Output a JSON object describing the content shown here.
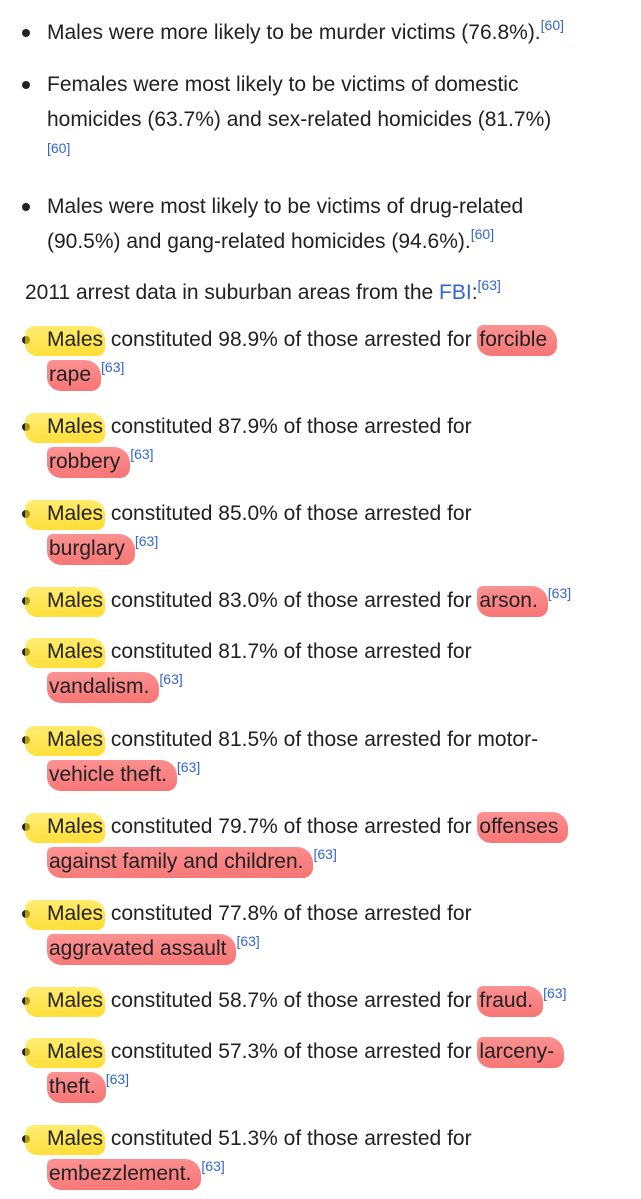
{
  "victims": [
    {
      "lines": [
        [
          "Males were more likely to be murder victims (76.8%).",
          "[60]"
        ]
      ]
    },
    {
      "lines": [
        [
          "Females were most likely to be victims of domestic",
          ""
        ],
        [
          "homicides (63.7%) and sex-related homicides (81.7%)",
          ""
        ],
        [
          "",
          "[60]"
        ]
      ]
    },
    {
      "lines": [
        [
          "Males were most likely to be victims of drug-related",
          ""
        ],
        [
          "(90.5%) and gang-related homicides (94.6%).",
          "[60]"
        ]
      ]
    }
  ],
  "intro": {
    "text": "2011 arrest data in suburban areas from the ",
    "link": "FBI",
    "colon": ":",
    "ref": "[63]"
  },
  "arrests": [
    {
      "males": "Males",
      "mid": " constituted 98.9% of those arrested for ",
      "crime1": "forcible",
      "crime2": "rape",
      "ref": "[63]"
    },
    {
      "males": "Males",
      "mid": " constituted 87.9% of those arrested for",
      "crime1": "",
      "crime2": "robbery",
      "ref": "[63]"
    },
    {
      "males": "Males",
      "mid": " constituted 85.0% of those arrested for",
      "crime1": "",
      "crime2": "burglary",
      "ref": "[63]"
    },
    {
      "males": "Males",
      "mid": " constituted 83.0% of those arrested for ",
      "crime1": "arson.",
      "crime2": "",
      "ref": "[63]"
    },
    {
      "males": "Males",
      "mid": " constituted 81.7% of those arrested for",
      "crime1": "",
      "crime2": "vandalism.",
      "ref": "[63]"
    },
    {
      "males": "Males",
      "mid": " constituted 81.5% of those arrested for motor-",
      "crime1": "",
      "crime2": "vehicle theft.",
      "ref": "[63]"
    },
    {
      "males": "Males",
      "mid": " constituted 79.7% of those arrested for ",
      "crime1": "offenses",
      "crime2": "against family and children.",
      "ref": "[63]"
    },
    {
      "males": "Males",
      "mid": " constituted 77.8% of those arrested for",
      "crime1": "",
      "crime2": "aggravated assault",
      "ref": "[63]"
    },
    {
      "males": "Males",
      "mid": " constituted 58.7% of those arrested for ",
      "crime1": "fraud.",
      "crime2": "",
      "ref": "[63]"
    },
    {
      "males": "Males",
      "mid": " constituted 57.3% of those arrested for ",
      "crime1": "larceny-",
      "crime2": "theft.",
      "ref": "[63]"
    },
    {
      "males": "Males",
      "mid": " constituted 51.3% of those arrested for",
      "crime1": "",
      "crime2": "embezzlement.",
      "ref": "[63]"
    }
  ]
}
